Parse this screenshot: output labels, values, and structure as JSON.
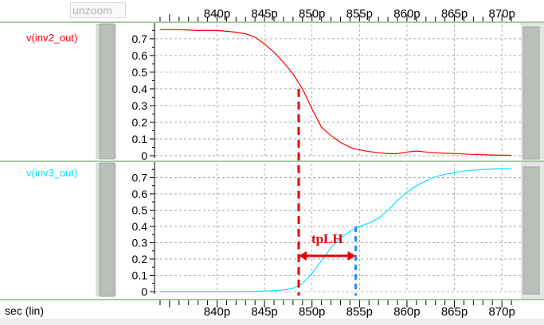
{
  "toolbar": {
    "unzoom_label": "unzoom"
  },
  "x_axis": {
    "label": "sec (lin)",
    "ticks": [
      "840p",
      "845p",
      "850p",
      "855p",
      "860p",
      "865p",
      "870p"
    ]
  },
  "annotation": {
    "label": "tpLH"
  },
  "colors": {
    "trace_top": "#ff0000",
    "trace_bottom": "#00e5ff",
    "annot_red": "#e60000",
    "annot_blue": "#1e90ff",
    "grid": "#9a9a9a",
    "panel_bg": "#e8e8e8",
    "sep": "#a6c9a6"
  },
  "chart_data": [
    {
      "type": "line",
      "series": [
        {
          "name": "v(inv2_out)",
          "x": [
            834,
            836,
            838,
            840,
            841,
            842,
            843,
            844,
            845,
            846,
            847,
            848,
            849,
            850,
            851,
            852,
            853,
            854,
            855,
            856,
            857,
            858,
            859,
            860,
            861,
            862,
            863,
            864,
            865,
            866,
            867,
            868,
            869,
            870,
            871
          ],
          "y": [
            0.755,
            0.755,
            0.75,
            0.75,
            0.745,
            0.74,
            0.73,
            0.71,
            0.67,
            0.62,
            0.56,
            0.49,
            0.4,
            0.28,
            0.17,
            0.12,
            0.08,
            0.05,
            0.035,
            0.025,
            0.018,
            0.012,
            0.012,
            0.022,
            0.028,
            0.022,
            0.018,
            0.014,
            0.013,
            0.01,
            0.008,
            0.006,
            0.004,
            0.003,
            0.003
          ]
        }
      ],
      "x_range": [
        833.5,
        872
      ],
      "ylim": [
        0,
        0.8
      ],
      "y_ticks": [
        "0",
        "0.1",
        "0.2",
        "0.3",
        "0.4",
        "0.5",
        "0.6",
        "0.7"
      ],
      "grid": true
    },
    {
      "type": "line",
      "series": [
        {
          "name": "v(inv3_out)",
          "x": [
            834,
            836,
            838,
            840,
            842,
            844,
            845,
            846,
            847,
            848,
            849,
            850,
            851,
            852,
            853,
            854,
            855,
            856,
            857,
            858,
            859,
            860,
            861,
            862,
            863,
            864,
            865,
            866,
            867,
            868,
            869,
            870,
            871
          ],
          "y": [
            0,
            0,
            0,
            0,
            0,
            0.002,
            0.004,
            0.006,
            0.01,
            0.02,
            0.05,
            0.11,
            0.19,
            0.27,
            0.33,
            0.37,
            0.4,
            0.42,
            0.45,
            0.5,
            0.56,
            0.61,
            0.65,
            0.68,
            0.705,
            0.72,
            0.73,
            0.74,
            0.745,
            0.75,
            0.752,
            0.755,
            0.755
          ]
        }
      ],
      "x_range": [
        833.5,
        872
      ],
      "ylim": [
        0,
        0.8
      ],
      "y_ticks": [
        "0",
        "0.1",
        "0.2",
        "0.3",
        "0.4",
        "0.5",
        "0.6",
        "0.7"
      ],
      "grid": true
    }
  ]
}
